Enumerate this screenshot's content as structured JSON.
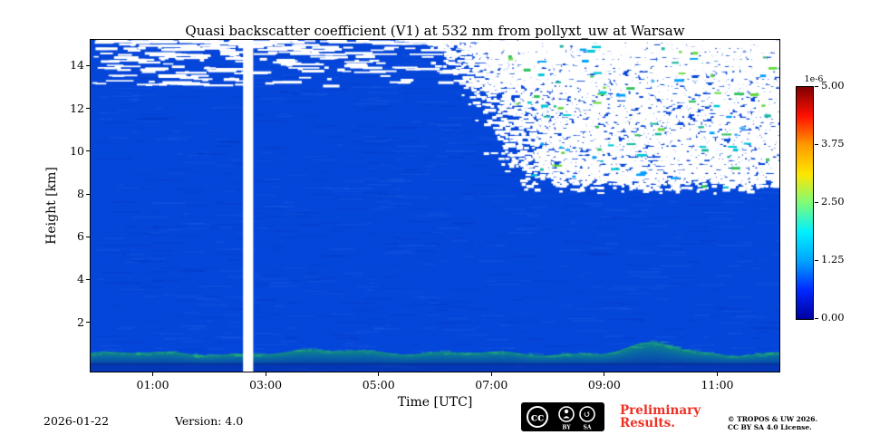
{
  "chart_data": {
    "type": "heatmap",
    "title": "Quasi backscatter coefficient (V1) at 532 nm from pollyxt_uw at Warsaw",
    "xlabel": "Time [UTC]",
    "ylabel": "Height [km]",
    "x_tick_labels": [
      "01:00",
      "03:00",
      "05:00",
      "07:00",
      "09:00",
      "11:00"
    ],
    "x_tick_hours": [
      1,
      3,
      5,
      7,
      9,
      11
    ],
    "x_range_hours": [
      -0.1,
      12.1
    ],
    "y_tick_labels": [
      "2",
      "4",
      "6",
      "8",
      "10",
      "12",
      "14"
    ],
    "y_tick_km": [
      2,
      4,
      6,
      8,
      10,
      12,
      14
    ],
    "y_range_km": [
      -0.3,
      15.2
    ],
    "colorbar": {
      "label": "1e-6",
      "ticks": [
        "5.00",
        "3.75",
        "2.50",
        "1.25",
        "0.00"
      ],
      "tick_values": [
        5.0,
        3.75,
        2.5,
        1.25,
        0.0
      ],
      "max_value": 5.0,
      "colormap": "jet",
      "gradient": [
        [
          "0%",
          "#7f0000"
        ],
        [
          "12.5%",
          "#ff1000"
        ],
        [
          "25%",
          "#ff9a00"
        ],
        [
          "37.5%",
          "#ffe600"
        ],
        [
          "50%",
          "#7dfc78"
        ],
        [
          "62.5%",
          "#00f0ff"
        ],
        [
          "75%",
          "#00a4ff"
        ],
        [
          "87.5%",
          "#0028ff"
        ],
        [
          "100%",
          "#0000a0"
        ]
      ]
    },
    "seed": 1337,
    "features": {
      "background_color": "#0546da",
      "background_value_range": [
        0.0,
        0.5
      ],
      "data_gap": {
        "start_hour": 2.6,
        "end_hour": 2.78,
        "description": "white vertical no-data band around 02:40 UTC"
      },
      "top_streaks": {
        "min_height_km": 13.1,
        "count": 520,
        "description": "white dropout streaks near 13-15 km across full period"
      },
      "masked_region": {
        "min_height_km": 8.0,
        "boundary": [
          [
            15.2,
            5.7
          ],
          [
            14.0,
            6.3
          ],
          [
            13.0,
            6.6
          ],
          [
            12.0,
            6.85
          ],
          [
            10.5,
            7.1
          ],
          [
            9.0,
            7.4
          ],
          [
            8.3,
            7.7
          ],
          [
            8.0,
            8.3
          ]
        ],
        "description": "speckled white low-SNR region after ~07:00 UTC above ~8 km with scattered cyan/green pixels"
      },
      "speckle_colors": [
        "#00c8d8",
        "#19b8a0",
        "#2fc25f",
        "#66d93e",
        "#00a0ff"
      ],
      "speckle_count": 85,
      "boundary_layer": {
        "base_top_km": 0.55,
        "bump_center_hour": 9.9,
        "bump_height_km": 0.45,
        "bump_width_hours": 0.55,
        "description": "shallow teal aerosol layer below ~1 km, enhanced around 09:30-10:30 UTC"
      }
    }
  },
  "footer": {
    "date": "2026-01-22",
    "version": "Version: 4.0",
    "preliminary_line1": "Preliminary",
    "preliminary_line2": "Results.",
    "preliminary_color": "#ee3124",
    "copyright_line1": "© TROPOS & UW 2026.",
    "copyright_line2": "CC BY SA 4.0 License.",
    "cc_badge": {
      "cc": "cc",
      "by_label": "BY",
      "sa_label": "SA"
    }
  }
}
